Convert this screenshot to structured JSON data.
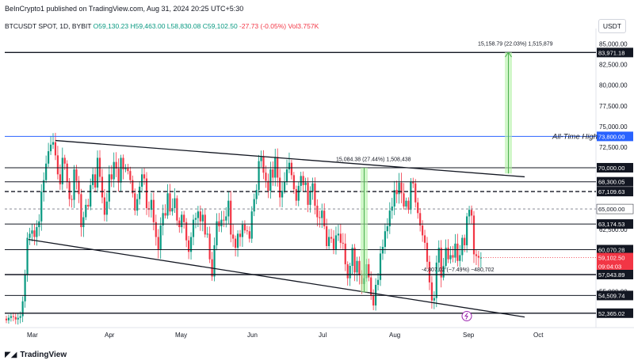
{
  "header": {
    "publisher": "BeInCrypto1 published on TradingView.com, Aug 31, 2024 20:25 UTC+5:30",
    "symbol": "BTCUSDT SPOT, 1D, BYBIT",
    "open": "O59,130.23",
    "high": "H59,463.00",
    "low": "L58,830.08",
    "close": "C59,102.50",
    "change": "-27.73 (-0.05%)",
    "vol": "Vol3.757K",
    "currency": "USDT"
  },
  "footer": {
    "brand": "TradingView"
  },
  "chart_data": {
    "type": "candlestick",
    "x_labels": [
      "Mar",
      "Apr",
      "May",
      "Jun",
      "Jul",
      "Aug",
      "Sep",
      "Oct"
    ],
    "y_ticks": [
      "85,000.00",
      "82,500.00",
      "80,000.00",
      "77,500.00",
      "75,000.00",
      "72,500.00",
      "65,000.00",
      "62,500.00",
      "55,000.00"
    ],
    "y_range": [
      51000,
      86500
    ],
    "closes": [
      51500,
      51800,
      52000,
      51900,
      51600,
      51800,
      52000,
      53800,
      57000,
      61500,
      62000,
      62400,
      61600,
      62800,
      63500,
      67100,
      68500,
      70500,
      72000,
      72800,
      73100,
      71500,
      69200,
      68000,
      71200,
      70500,
      68300,
      66200,
      66100,
      69800,
      68400,
      66800,
      62800,
      64000,
      65500,
      65300,
      67900,
      69200,
      67600,
      71200,
      68900,
      66400,
      64300,
      65900,
      69200,
      68600,
      70700,
      69900,
      68200,
      71200,
      69800,
      70000,
      69600,
      68500,
      66900,
      64800,
      66200,
      67700,
      69200,
      68700,
      65100,
      64900,
      66100,
      63400,
      61600,
      60100,
      63000,
      64500,
      64200,
      66900,
      64700,
      65100,
      66300,
      63600,
      62800,
      64300,
      63400,
      61200,
      59800,
      61600,
      63700,
      63900,
      64700,
      63500,
      64300,
      61900,
      62000,
      58900,
      56800,
      60600,
      63500,
      62900,
      63700,
      63600,
      64100,
      66000,
      61900,
      61400,
      60300,
      62000,
      61600,
      63100,
      62400,
      62300,
      61400,
      64700,
      66200,
      67300,
      70800,
      71300,
      69400,
      68400,
      67200,
      69800,
      68800,
      71300,
      68800,
      66400,
      67200,
      68300,
      69800,
      70600,
      69100,
      67400,
      66000,
      67800,
      69000,
      67900,
      68200,
      65500,
      67100,
      68100,
      65400,
      64000,
      63900,
      64800,
      62900,
      60500,
      61600,
      61400,
      60100,
      61800,
      62000,
      60900,
      60800,
      58300,
      56600,
      58100,
      60300,
      57300,
      58700,
      57000,
      55900,
      56600,
      58300,
      56700,
      54500,
      53300,
      55800,
      56400,
      59600,
      60400,
      62300,
      62900,
      64800,
      65300,
      67300,
      66800,
      68200,
      66900,
      65300,
      66000,
      64900,
      68300,
      68100,
      65800,
      64500,
      63000,
      61800,
      60900,
      58600,
      56100,
      53900,
      54200,
      58500,
      60300,
      56700,
      58100,
      60300,
      58900,
      59400,
      59100,
      60800,
      58700,
      59400,
      61500,
      60600,
      64100,
      64900,
      64200,
      59500,
      59300,
      59100,
      59100
    ],
    "price_levels": [
      {
        "value": "83,971.18",
        "color": "#131722"
      },
      {
        "value": "73,800.00",
        "color": "#2962ff",
        "name": "All-Time High"
      },
      {
        "value": "70,000.00",
        "color": "#131722"
      },
      {
        "value": "68,300.05",
        "color": "#131722"
      },
      {
        "value": "67,109.63",
        "color": "#131722"
      },
      {
        "value": "65,000.00",
        "color": "#ffffff",
        "text_color": "#131722"
      },
      {
        "value": "63,174.53",
        "color": "#131722"
      },
      {
        "value": "60,070.28",
        "color": "#131722"
      },
      {
        "value": "59,102.50",
        "color": "#f23645"
      },
      {
        "value": "09:04:03",
        "color": "#f23645"
      },
      {
        "value": "57,043.89",
        "color": "#131722"
      },
      {
        "value": "54,509.74",
        "color": "#131722"
      },
      {
        "value": "52,365.02",
        "color": "#131722"
      }
    ],
    "annotations": [
      {
        "text": "15,158.79 (22.03%) 1,515,879"
      },
      {
        "text": "15,084.38 (27.44%) 1,508,438"
      },
      {
        "text": "-4,807.02 (−7.49%) −480,702"
      },
      {
        "text": "All-Time High"
      }
    ],
    "colors": {
      "up": "#089981",
      "down": "#f23645",
      "measure": "#b2f2a5"
    }
  }
}
